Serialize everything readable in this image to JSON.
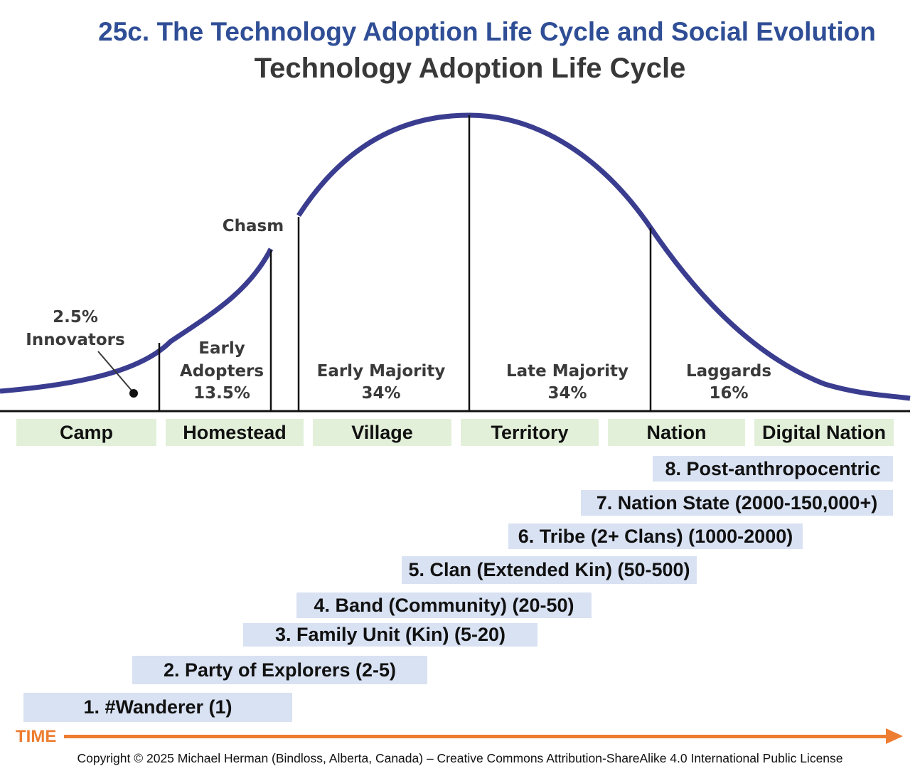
{
  "header": {
    "title": "25c. The Technology Adoption Life Cycle  and Social Evolution",
    "subtitle": "Technology Adoption Life Cycle"
  },
  "curve": {
    "chasm_label": "Chasm",
    "segments": [
      {
        "name_lines": [
          "2.5%",
          "Innovators"
        ]
      },
      {
        "name_lines": [
          "Early",
          "Adopters",
          "13.5%"
        ]
      },
      {
        "name_lines": [
          "Early Majority",
          "34%"
        ]
      },
      {
        "name_lines": [
          "Late Majority",
          "34%"
        ]
      },
      {
        "name_lines": [
          "Laggards",
          "16%"
        ]
      }
    ],
    "colors": {
      "curve": "#3a3d8f",
      "lines": "#111111"
    }
  },
  "stages": [
    "Camp",
    "Homestead",
    "Village",
    "Territory",
    "Nation",
    "Digital Nation"
  ],
  "levels": [
    "8. Post-anthropocentric",
    "7. Nation State (2000-150,000+)",
    "6. Tribe (2+ Clans) (1000-2000)",
    "5. Clan (Extended Kin) (50-500)",
    "4. Band (Community) (20-50)",
    "3. Family Unit (Kin) (5-20)",
    "2. Party of Explorers (2-5)",
    "1. #Wanderer (1)"
  ],
  "timeline": {
    "label": "TIME",
    "color": "#ed7d31"
  },
  "footer": {
    "copyright": "Copyright © 2025 Michael Herman (Bindloss, Alberta, Canada) – Creative Commons Attribution-ShareAlike 4.0 International Public License"
  }
}
